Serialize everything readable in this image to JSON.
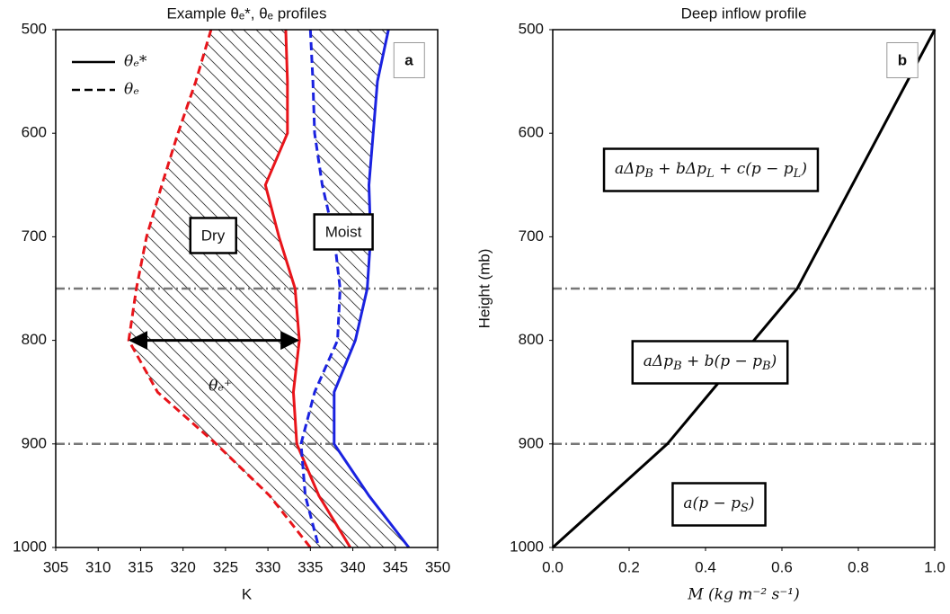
{
  "chart_data": [
    {
      "type": "line",
      "title": "Example θₑ*, θₑ profiles",
      "xlabel": "K",
      "xlim": [
        305,
        350
      ],
      "xticks": [
        305,
        310,
        315,
        320,
        325,
        330,
        335,
        340,
        345,
        350
      ],
      "ylim": [
        1000,
        500
      ],
      "yticks": [
        500,
        600,
        700,
        800,
        900,
        1000
      ],
      "hlines": [
        750,
        900
      ],
      "levels": [
        500,
        550,
        600,
        650,
        700,
        750,
        800,
        850,
        900,
        950,
        1000
      ],
      "series": [
        {
          "color": "#e8141a",
          "style": "solid",
          "values": [
            332.1,
            332.3,
            332.3,
            329.7,
            331.3,
            333.2,
            333.7,
            333.0,
            333.4,
            336.0,
            339.7
          ]
        },
        {
          "color": "#e8141a",
          "style": "dashed",
          "values": [
            323.3,
            321.5,
            319.4,
            317.5,
            315.7,
            314.5,
            313.6,
            317.0,
            323.9,
            330.2,
            335.0
          ]
        },
        {
          "color": "#1a22e0",
          "style": "solid",
          "values": [
            344.2,
            342.9,
            342.4,
            341.9,
            342.1,
            341.7,
            340.3,
            337.8,
            337.8,
            341.9,
            346.6
          ]
        },
        {
          "color": "#1a22e0",
          "style": "dashed",
          "values": [
            335.0,
            335.3,
            335.5,
            336.4,
            337.8,
            338.5,
            338.2,
            335.5,
            333.9,
            334.4,
            336.0
          ]
        }
      ],
      "legend": [
        {
          "name": "θₑ*",
          "style": "solid"
        },
        {
          "name": "θₑ",
          "style": "dashed"
        }
      ],
      "boxed_labels": [
        "Dry",
        "Moist"
      ],
      "annotation": "θₑ⁺",
      "panel_label": "a"
    },
    {
      "type": "line",
      "title": "Deep inflow profile",
      "xlabel": "M (kg m⁻² s⁻¹)",
      "ylabel": "Height (mb)",
      "xlim": [
        0,
        1
      ],
      "xticks": [
        {
          "value": 0,
          "label": "0.0"
        },
        0.2,
        0.4,
        0.6,
        0.8,
        {
          "value": 1,
          "label": "1.0"
        }
      ],
      "ylim": [
        1000,
        500
      ],
      "yticks": [
        500,
        600,
        700,
        800,
        900,
        1000
      ],
      "hlines": [
        750,
        900
      ],
      "levels": [
        1000,
        900,
        750,
        500
      ],
      "series": [
        {
          "color": "#000000",
          "style": "solid",
          "values": [
            0,
            0.3,
            0.64,
            1.0
          ]
        }
      ],
      "formulas": [
        [
          "aΔp",
          "B",
          " + bΔp",
          "L",
          " + c(p − p",
          "L",
          ")"
        ],
        [
          "aΔp",
          "B",
          " + b(p − p",
          "B",
          ")"
        ],
        [
          "a(p − p",
          "S",
          ")"
        ]
      ],
      "panel_label": "b"
    }
  ]
}
